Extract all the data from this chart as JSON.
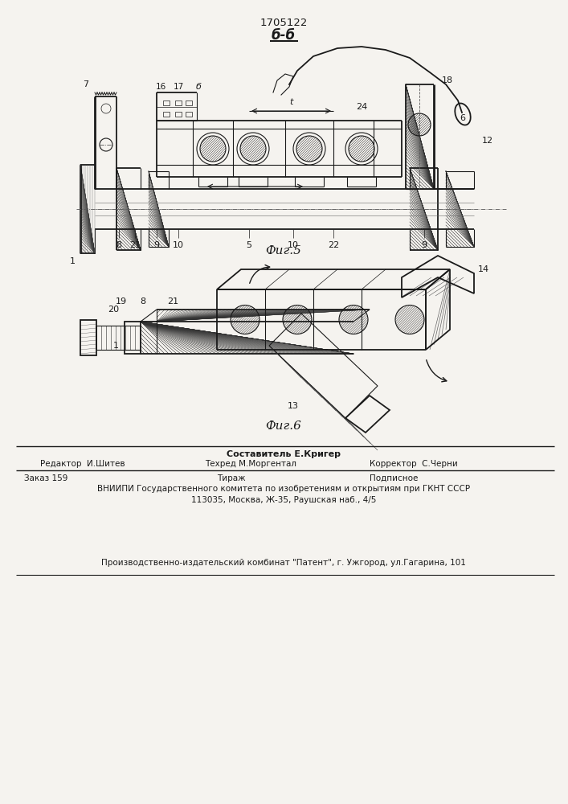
{
  "patent_number": "1705122",
  "section_label": "б-б",
  "fig5_label": "Фиг.5",
  "fig6_label": "Фиг.6",
  "bg_color": "#f5f3ef",
  "line_color": "#1a1a1a",
  "footer_line1_col2_bold": "Составитель Е.Кригер",
  "footer_line1_col1": "Редактор  И.Шитев",
  "footer_line1_col2": "Техред М.Моргентал",
  "footer_line1_col3": "Корректор  С.Черни",
  "footer_line2_col1": "Заказ 159",
  "footer_line2_col2": "Тираж",
  "footer_line2_col3": "Подписное",
  "footer_line3": "ВНИИПИ Государственного комитета по изобретениям и открытиям при ГКНТ СССР",
  "footer_line4": "113035, Москва, Ж-35, Раушская наб., 4/5",
  "footer_line5": "Производственно-издательский комбинат \"Патент\", г. Ужгород, ул.Гагарина, 101",
  "fig_width": 7.07,
  "fig_height": 10.0,
  "dpi": 100
}
